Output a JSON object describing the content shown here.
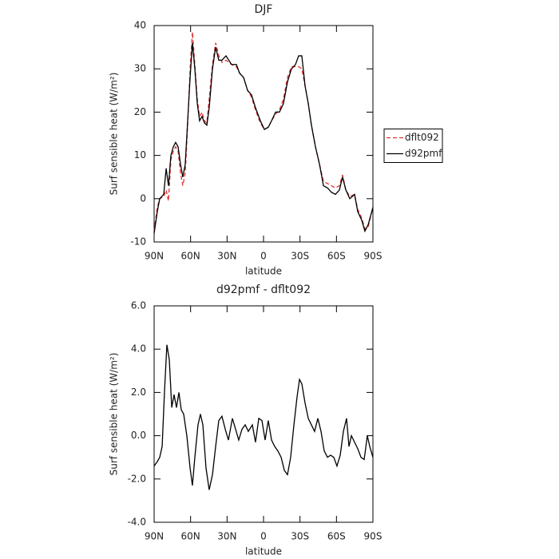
{
  "chart_data": [
    {
      "type": "line",
      "title": "DJF",
      "xlabel": "latitude",
      "ylabel": "Surf sensible heat (W/m²)",
      "xlim": [
        90,
        -90
      ],
      "xticks": [
        {
          "value": 90,
          "label": "90N"
        },
        {
          "value": 60,
          "label": "60N"
        },
        {
          "value": 30,
          "label": "30N"
        },
        0,
        {
          "value": -30,
          "label": "30S"
        },
        {
          "value": -60,
          "label": "60S"
        },
        {
          "value": -90,
          "label": "90S"
        }
      ],
      "ylim": [
        -10,
        40
      ],
      "yticks": [
        -10,
        0,
        10,
        20,
        30,
        40
      ],
      "legend": "right",
      "x": [
        90,
        87.4,
        85.4,
        82.1,
        80.1,
        78.2,
        76.2,
        74.2,
        72.3,
        70.3,
        68.3,
        66.4,
        64.4,
        62.4,
        60.4,
        58.5,
        56.5,
        54.5,
        52.6,
        50.6,
        48.6,
        46.6,
        44.7,
        42.0,
        39.4,
        36.8,
        34.2,
        30.9,
        26.3,
        22.3,
        19.7,
        16.4,
        13.1,
        9.9,
        6.6,
        2.6,
        -0.7,
        -3.9,
        -6.6,
        -9.9,
        -13.1,
        -16.4,
        -19.7,
        -23.0,
        -26.3,
        -28.9,
        -31.5,
        -34.2,
        -36.8,
        -39.4,
        -42.7,
        -46.0,
        -49.3,
        -52.6,
        -55.8,
        -59.1,
        -62.4,
        -65.0,
        -67.7,
        -71.0,
        -74.9,
        -77.5,
        -80.8,
        -83.4,
        -86.1,
        -90
      ],
      "series": [
        {
          "name": "dflt092",
          "color": "#e03030",
          "dashed": true,
          "values": [
            -7.5,
            -2,
            0,
            0.5,
            2,
            -0.5,
            9,
            11,
            12,
            11,
            6,
            3,
            6,
            17,
            30,
            38.5,
            31,
            23,
            19,
            20,
            18,
            17.5,
            23,
            31,
            36,
            33,
            31.5,
            32,
            31,
            30.5,
            29,
            28,
            25,
            23.5,
            20.5,
            17.5,
            16,
            16.5,
            18,
            19.5,
            20.5,
            23,
            28,
            30.5,
            30.5,
            30.5,
            30,
            26,
            22,
            17,
            12,
            8,
            4,
            3.5,
            3,
            2.5,
            3,
            5.5,
            2,
            0.5,
            1,
            -2.5,
            -4.5,
            -7,
            -6.5,
            -2
          ]
        },
        {
          "name": "d92pmf",
          "color": "#000000",
          "dashed": false,
          "values": [
            -8,
            -3,
            0,
            1,
            7,
            3,
            10,
            12,
            13,
            12,
            8,
            5,
            8,
            18,
            28,
            36,
            30,
            22,
            18,
            19,
            17.5,
            17,
            21,
            30,
            35,
            32,
            32,
            33,
            31,
            31,
            29,
            28,
            25,
            24,
            21,
            18,
            16,
            16.5,
            18,
            20,
            20,
            22,
            27,
            30,
            31,
            33,
            33,
            26,
            22,
            17,
            12,
            8,
            3,
            2.5,
            1.5,
            1,
            2,
            5,
            2,
            0,
            1,
            -3,
            -5,
            -7.5,
            -6,
            -2
          ]
        }
      ]
    },
    {
      "type": "line",
      "title": "d92pmf - dflt092",
      "xlabel": "latitude",
      "ylabel": "Surf sensible heat (W/m²)",
      "xlim": [
        90,
        -90
      ],
      "xticks": [
        {
          "value": 90,
          "label": "90N"
        },
        {
          "value": 60,
          "label": "60N"
        },
        {
          "value": 30,
          "label": "30N"
        },
        0,
        {
          "value": -30,
          "label": "30S"
        },
        {
          "value": -60,
          "label": "60S"
        },
        {
          "value": -90,
          "label": "90S"
        }
      ],
      "ylim": [
        -4,
        6
      ],
      "yticks": [
        {
          "value": -4,
          "label": "-4.0"
        },
        {
          "value": -2,
          "label": "-2.0"
        },
        {
          "value": 0,
          "label": "0.0"
        },
        {
          "value": 2,
          "label": "2.0"
        },
        {
          "value": 4,
          "label": "4.0"
        },
        {
          "value": 6,
          "label": "6.0"
        }
      ],
      "x": [
        90,
        87.4,
        85.4,
        83.4,
        81.5,
        79.5,
        77.5,
        75.5,
        73.6,
        71.6,
        69.6,
        67.7,
        65.7,
        63.1,
        60.4,
        58.5,
        56.5,
        53.9,
        51.9,
        49.9,
        47.3,
        44.7,
        42.0,
        39.4,
        36.8,
        34.2,
        31.5,
        28.9,
        25.6,
        23.0,
        20.4,
        17.7,
        15.1,
        12.5,
        9.2,
        6.6,
        3.9,
        1.3,
        -1.3,
        -3.9,
        -6.6,
        -9.2,
        -11.8,
        -14.5,
        -17.1,
        -19.7,
        -22.3,
        -25.0,
        -27.6,
        -29.6,
        -31.5,
        -34.2,
        -36.8,
        -39.4,
        -42.0,
        -44.7,
        -47.3,
        -49.9,
        -52.6,
        -55.2,
        -57.8,
        -60.4,
        -63.1,
        -65.7,
        -68.3,
        -70.3,
        -72.3,
        -74.9,
        -77.5,
        -80.2,
        -82.8,
        -85.4,
        -87.4,
        -90
      ],
      "series": [
        {
          "color": "#000000",
          "dashed": false,
          "values": [
            -1.4,
            -1.2,
            -1.0,
            -0.5,
            2.0,
            4.2,
            3.5,
            1.3,
            1.9,
            1.3,
            2.0,
            1.2,
            1.0,
            0.0,
            -1.5,
            -2.3,
            -1.0,
            0.5,
            1.0,
            0.5,
            -1.5,
            -2.5,
            -1.8,
            -0.5,
            0.7,
            0.9,
            0.3,
            -0.2,
            0.8,
            0.3,
            -0.2,
            0.3,
            0.5,
            0.2,
            0.5,
            -0.3,
            0.8,
            0.7,
            -0.2,
            0.7,
            -0.2,
            -0.5,
            -0.7,
            -1.0,
            -1.6,
            -1.8,
            -1.0,
            0.5,
            1.8,
            2.6,
            2.4,
            1.5,
            0.8,
            0.5,
            0.2,
            0.8,
            0.2,
            -0.7,
            -1.0,
            -0.9,
            -1.0,
            -1.4,
            -0.9,
            0.2,
            0.8,
            -0.5,
            0.0,
            -0.3,
            -0.6,
            -1.0,
            -1.1,
            0.0,
            -0.5,
            -1.0
          ]
        }
      ]
    }
  ]
}
